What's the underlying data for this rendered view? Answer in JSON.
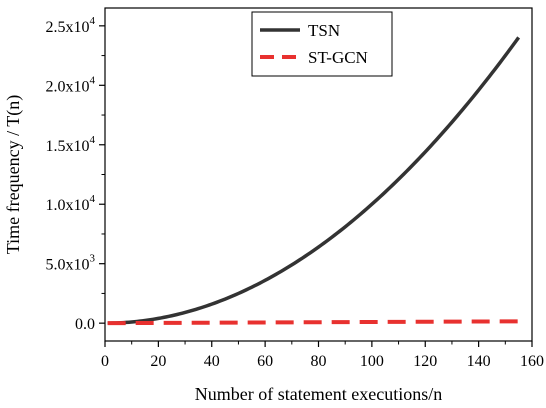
{
  "chart_data": {
    "type": "line",
    "xlabel": "Number of statement executions/n",
    "ylabel": "Time frequency / T(n)",
    "xlim": [
      0,
      160
    ],
    "ylim": [
      -1500,
      26500
    ],
    "x_ticks": [
      0,
      20,
      40,
      60,
      80,
      100,
      120,
      140,
      160
    ],
    "y_ticks": [
      {
        "value": 0,
        "mantissa": "0.0",
        "exp": ""
      },
      {
        "value": 5000,
        "mantissa": "5.0x10",
        "exp": "3"
      },
      {
        "value": 10000,
        "mantissa": "1.0x10",
        "exp": "4"
      },
      {
        "value": 15000,
        "mantissa": "1.5x10",
        "exp": "4"
      },
      {
        "value": 20000,
        "mantissa": "2.0x10",
        "exp": "4"
      },
      {
        "value": 25000,
        "mantissa": "2.5x10",
        "exp": "4"
      }
    ],
    "legend_position": "top-center",
    "grid": false,
    "series": [
      {
        "name": "TSN",
        "color": "#333333",
        "style": "solid",
        "x": [
          1,
          10,
          20,
          30,
          40,
          50,
          60,
          70,
          80,
          90,
          100,
          110,
          120,
          130,
          140,
          150,
          155
        ],
        "y": [
          1,
          100,
          400,
          900,
          1600,
          2500,
          3600,
          4900,
          6400,
          8100,
          10000,
          12100,
          14400,
          16900,
          19600,
          22500,
          24025
        ]
      },
      {
        "name": "ST-GCN",
        "color": "#e8312f",
        "style": "dashed",
        "x": [
          1,
          20,
          40,
          60,
          80,
          100,
          120,
          140,
          155
        ],
        "y": [
          1,
          20,
          40,
          60,
          80,
          100,
          120,
          140,
          155
        ]
      }
    ]
  }
}
